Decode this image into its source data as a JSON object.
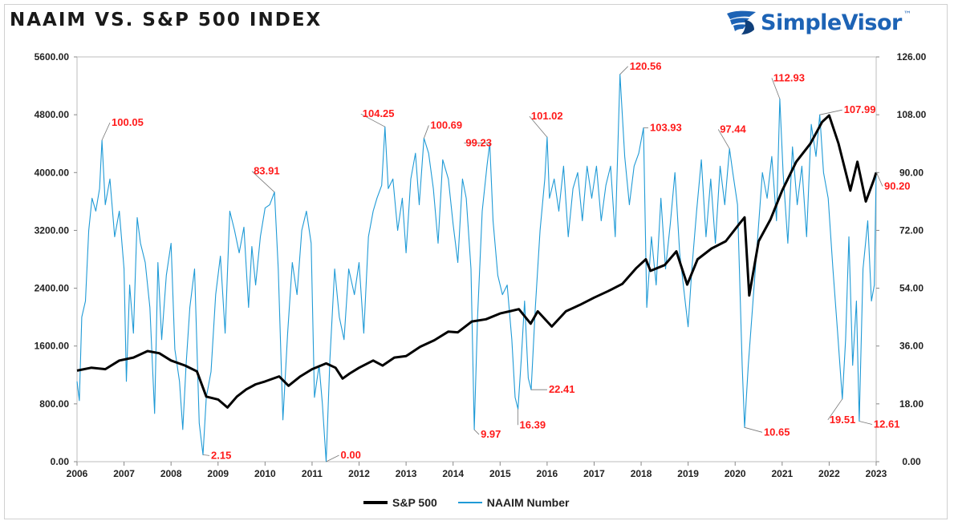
{
  "header": {
    "title": "NAAIM VS. S&P 500 INDEX",
    "brand_name": "SimpleVisor",
    "brand_tm": "™"
  },
  "colors": {
    "sp500": "#000000",
    "naaim": "#1f9ad6",
    "annotation": "#ff1a1a",
    "brand": "#1d63b5"
  },
  "legend": {
    "sp500_label": "S&P 500",
    "naaim_label": "NAAIM Number"
  },
  "chart_data": {
    "type": "line",
    "title": "NAAIM VS. S&P 500 INDEX",
    "xlabel": "",
    "ylabel": "",
    "grid": false,
    "legend_position": "bottom",
    "x_range": [
      2006.0,
      2023.0
    ],
    "x_ticks": [
      "2006",
      "2007",
      "2008",
      "2009",
      "2010",
      "2011",
      "2012",
      "2013",
      "2014",
      "2015",
      "2016",
      "2017",
      "2018",
      "2019",
      "2020",
      "2021",
      "2022",
      "2023"
    ],
    "y_left": {
      "series": "S&P 500",
      "range": [
        0,
        5600
      ],
      "ticks": [
        "0.00",
        "800.00",
        "1600.00",
        "2400.00",
        "3200.00",
        "4000.00",
        "4800.00",
        "5600.00"
      ]
    },
    "y_right": {
      "series": "NAAIM Number",
      "range": [
        0,
        126
      ],
      "ticks": [
        "0.00",
        "18.00",
        "36.00",
        "54.00",
        "72.00",
        "90.00",
        "108.00",
        "126.00"
      ]
    },
    "series": [
      {
        "name": "S&P 500",
        "axis": "left",
        "points": [
          [
            2006.0,
            1260
          ],
          [
            2006.3,
            1300
          ],
          [
            2006.6,
            1280
          ],
          [
            2006.9,
            1400
          ],
          [
            2007.2,
            1440
          ],
          [
            2007.5,
            1530
          ],
          [
            2007.75,
            1500
          ],
          [
            2008.0,
            1400
          ],
          [
            2008.3,
            1330
          ],
          [
            2008.55,
            1250
          ],
          [
            2008.75,
            900
          ],
          [
            2009.0,
            860
          ],
          [
            2009.2,
            750
          ],
          [
            2009.4,
            900
          ],
          [
            2009.6,
            1000
          ],
          [
            2009.8,
            1070
          ],
          [
            2010.0,
            1110
          ],
          [
            2010.3,
            1180
          ],
          [
            2010.5,
            1050
          ],
          [
            2010.75,
            1180
          ],
          [
            2011.0,
            1280
          ],
          [
            2011.3,
            1360
          ],
          [
            2011.5,
            1300
          ],
          [
            2011.65,
            1150
          ],
          [
            2011.8,
            1220
          ],
          [
            2012.0,
            1300
          ],
          [
            2012.3,
            1400
          ],
          [
            2012.5,
            1330
          ],
          [
            2012.75,
            1440
          ],
          [
            2013.0,
            1460
          ],
          [
            2013.3,
            1590
          ],
          [
            2013.6,
            1680
          ],
          [
            2013.9,
            1800
          ],
          [
            2014.1,
            1790
          ],
          [
            2014.4,
            1940
          ],
          [
            2014.7,
            1970
          ],
          [
            2015.0,
            2050
          ],
          [
            2015.4,
            2110
          ],
          [
            2015.65,
            1910
          ],
          [
            2015.8,
            2080
          ],
          [
            2016.1,
            1870
          ],
          [
            2016.4,
            2080
          ],
          [
            2016.7,
            2170
          ],
          [
            2017.0,
            2270
          ],
          [
            2017.3,
            2360
          ],
          [
            2017.6,
            2460
          ],
          [
            2017.9,
            2680
          ],
          [
            2018.1,
            2800
          ],
          [
            2018.2,
            2640
          ],
          [
            2018.5,
            2720
          ],
          [
            2018.75,
            2910
          ],
          [
            2018.98,
            2450
          ],
          [
            2019.2,
            2800
          ],
          [
            2019.5,
            2950
          ],
          [
            2019.8,
            3050
          ],
          [
            2020.1,
            3300
          ],
          [
            2020.2,
            3380
          ],
          [
            2020.3,
            2300
          ],
          [
            2020.5,
            3050
          ],
          [
            2020.75,
            3350
          ],
          [
            2021.0,
            3750
          ],
          [
            2021.3,
            4150
          ],
          [
            2021.6,
            4400
          ],
          [
            2021.85,
            4700
          ],
          [
            2022.0,
            4790
          ],
          [
            2022.2,
            4400
          ],
          [
            2022.45,
            3750
          ],
          [
            2022.6,
            4150
          ],
          [
            2022.78,
            3600
          ],
          [
            2022.95,
            3900
          ],
          [
            2023.0,
            4000
          ]
        ]
      },
      {
        "name": "NAAIM Number",
        "axis": "right",
        "points": [
          [
            2006.0,
            25
          ],
          [
            2006.05,
            19
          ],
          [
            2006.1,
            45
          ],
          [
            2006.18,
            50
          ],
          [
            2006.25,
            72
          ],
          [
            2006.32,
            82
          ],
          [
            2006.4,
            78
          ],
          [
            2006.48,
            85
          ],
          [
            2006.53,
            100.05
          ],
          [
            2006.6,
            80
          ],
          [
            2006.7,
            88
          ],
          [
            2006.8,
            70
          ],
          [
            2006.9,
            78
          ],
          [
            2007.0,
            60
          ],
          [
            2007.05,
            25
          ],
          [
            2007.12,
            55
          ],
          [
            2007.2,
            40
          ],
          [
            2007.28,
            76
          ],
          [
            2007.35,
            68
          ],
          [
            2007.45,
            62
          ],
          [
            2007.55,
            48
          ],
          [
            2007.65,
            15
          ],
          [
            2007.72,
            62
          ],
          [
            2007.8,
            38
          ],
          [
            2007.9,
            58
          ],
          [
            2008.0,
            68
          ],
          [
            2008.08,
            35
          ],
          [
            2008.18,
            25
          ],
          [
            2008.25,
            10
          ],
          [
            2008.32,
            30
          ],
          [
            2008.4,
            48
          ],
          [
            2008.5,
            60
          ],
          [
            2008.6,
            12
          ],
          [
            2008.68,
            2.15
          ],
          [
            2008.75,
            20
          ],
          [
            2008.85,
            28
          ],
          [
            2008.95,
            52
          ],
          [
            2009.05,
            64
          ],
          [
            2009.15,
            40
          ],
          [
            2009.25,
            78
          ],
          [
            2009.35,
            72
          ],
          [
            2009.45,
            65
          ],
          [
            2009.55,
            73
          ],
          [
            2009.65,
            48
          ],
          [
            2009.72,
            67
          ],
          [
            2009.8,
            55
          ],
          [
            2009.9,
            70
          ],
          [
            2010.0,
            79
          ],
          [
            2010.1,
            80
          ],
          [
            2010.2,
            83.91
          ],
          [
            2010.28,
            60
          ],
          [
            2010.38,
            13
          ],
          [
            2010.48,
            40
          ],
          [
            2010.58,
            62
          ],
          [
            2010.68,
            52
          ],
          [
            2010.78,
            72
          ],
          [
            2010.88,
            78
          ],
          [
            2010.98,
            68
          ],
          [
            2011.05,
            20
          ],
          [
            2011.15,
            30
          ],
          [
            2011.22,
            18
          ],
          [
            2011.3,
            0.0
          ],
          [
            2011.38,
            32
          ],
          [
            2011.48,
            60
          ],
          [
            2011.58,
            45
          ],
          [
            2011.68,
            38
          ],
          [
            2011.78,
            60
          ],
          [
            2011.9,
            52
          ],
          [
            2012.0,
            62
          ],
          [
            2012.1,
            40
          ],
          [
            2012.2,
            70
          ],
          [
            2012.3,
            78
          ],
          [
            2012.38,
            82
          ],
          [
            2012.48,
            86
          ],
          [
            2012.55,
            104.25
          ],
          [
            2012.62,
            85
          ],
          [
            2012.72,
            88
          ],
          [
            2012.82,
            72
          ],
          [
            2012.92,
            82
          ],
          [
            2013.0,
            65
          ],
          [
            2013.1,
            88
          ],
          [
            2013.2,
            96
          ],
          [
            2013.28,
            80
          ],
          [
            2013.38,
            100.69
          ],
          [
            2013.48,
            96
          ],
          [
            2013.58,
            85
          ],
          [
            2013.68,
            68
          ],
          [
            2013.78,
            94
          ],
          [
            2013.9,
            88
          ],
          [
            2014.0,
            74
          ],
          [
            2014.1,
            62
          ],
          [
            2014.2,
            88
          ],
          [
            2014.28,
            82
          ],
          [
            2014.38,
            60
          ],
          [
            2014.45,
            9.97
          ],
          [
            2014.52,
            45
          ],
          [
            2014.62,
            78
          ],
          [
            2014.72,
            92
          ],
          [
            2014.78,
            99.23
          ],
          [
            2014.85,
            75
          ],
          [
            2014.95,
            58
          ],
          [
            2015.05,
            52
          ],
          [
            2015.15,
            55
          ],
          [
            2015.25,
            38
          ],
          [
            2015.32,
            20
          ],
          [
            2015.38,
            16.39
          ],
          [
            2015.45,
            32
          ],
          [
            2015.52,
            50
          ],
          [
            2015.6,
            26
          ],
          [
            2015.66,
            22.41
          ],
          [
            2015.75,
            48
          ],
          [
            2015.85,
            72
          ],
          [
            2015.95,
            88
          ],
          [
            2016.0,
            101.02
          ],
          [
            2016.05,
            82
          ],
          [
            2016.15,
            88
          ],
          [
            2016.25,
            78
          ],
          [
            2016.35,
            92
          ],
          [
            2016.45,
            70
          ],
          [
            2016.55,
            85
          ],
          [
            2016.65,
            90
          ],
          [
            2016.75,
            75
          ],
          [
            2016.85,
            92
          ],
          [
            2016.95,
            82
          ],
          [
            2017.05,
            92
          ],
          [
            2017.15,
            75
          ],
          [
            2017.25,
            86
          ],
          [
            2017.35,
            92
          ],
          [
            2017.45,
            70
          ],
          [
            2017.55,
            120.56
          ],
          [
            2017.65,
            95
          ],
          [
            2017.75,
            80
          ],
          [
            2017.85,
            92
          ],
          [
            2017.95,
            96
          ],
          [
            2018.05,
            103.93
          ],
          [
            2018.12,
            48
          ],
          [
            2018.22,
            70
          ],
          [
            2018.32,
            55
          ],
          [
            2018.42,
            82
          ],
          [
            2018.52,
            60
          ],
          [
            2018.62,
            74
          ],
          [
            2018.72,
            90
          ],
          [
            2018.82,
            65
          ],
          [
            2018.92,
            52
          ],
          [
            2019.0,
            42
          ],
          [
            2019.08,
            60
          ],
          [
            2019.18,
            78
          ],
          [
            2019.28,
            94
          ],
          [
            2019.38,
            70
          ],
          [
            2019.48,
            88
          ],
          [
            2019.58,
            68
          ],
          [
            2019.68,
            92
          ],
          [
            2019.78,
            80
          ],
          [
            2019.88,
            97.44
          ],
          [
            2019.95,
            90
          ],
          [
            2020.05,
            80
          ],
          [
            2020.15,
            30
          ],
          [
            2020.2,
            10.65
          ],
          [
            2020.28,
            30
          ],
          [
            2020.38,
            50
          ],
          [
            2020.48,
            70
          ],
          [
            2020.58,
            90
          ],
          [
            2020.68,
            82
          ],
          [
            2020.78,
            95
          ],
          [
            2020.88,
            75
          ],
          [
            2020.95,
            112.93
          ],
          [
            2021.02,
            90
          ],
          [
            2021.12,
            68
          ],
          [
            2021.22,
            98
          ],
          [
            2021.32,
            80
          ],
          [
            2021.42,
            92
          ],
          [
            2021.52,
            70
          ],
          [
            2021.62,
            105
          ],
          [
            2021.72,
            95
          ],
          [
            2021.8,
            107.99
          ],
          [
            2021.88,
            90
          ],
          [
            2021.98,
            82
          ],
          [
            2022.08,
            60
          ],
          [
            2022.18,
            40
          ],
          [
            2022.28,
            19.51
          ],
          [
            2022.35,
            38
          ],
          [
            2022.42,
            70
          ],
          [
            2022.5,
            30
          ],
          [
            2022.58,
            50
          ],
          [
            2022.64,
            12.61
          ],
          [
            2022.72,
            60
          ],
          [
            2022.82,
            75
          ],
          [
            2022.9,
            50
          ],
          [
            2022.96,
            55
          ],
          [
            2023.0,
            90.2
          ]
        ]
      }
    ],
    "annotations": [
      {
        "label": "100.05",
        "x": 2006.53,
        "y": 100.05
      },
      {
        "label": "83.91",
        "x": 2010.2,
        "y": 83.91
      },
      {
        "label": "2.15",
        "x": 2008.68,
        "y": 2.15
      },
      {
        "label": "0.00",
        "x": 2011.3,
        "y": 0.0
      },
      {
        "label": "104.25",
        "x": 2012.55,
        "y": 104.25
      },
      {
        "label": "100.69",
        "x": 2013.38,
        "y": 100.69
      },
      {
        "label": "99.23",
        "x": 2014.78,
        "y": 99.23
      },
      {
        "label": "9.97",
        "x": 2014.45,
        "y": 9.97
      },
      {
        "label": "16.39",
        "x": 2015.38,
        "y": 16.39
      },
      {
        "label": "22.41",
        "x": 2015.66,
        "y": 22.41
      },
      {
        "label": "101.02",
        "x": 2016.0,
        "y": 101.02
      },
      {
        "label": "120.56",
        "x": 2017.55,
        "y": 120.56
      },
      {
        "label": "103.93",
        "x": 2018.05,
        "y": 103.93
      },
      {
        "label": "97.44",
        "x": 2019.88,
        "y": 97.44
      },
      {
        "label": "10.65",
        "x": 2020.2,
        "y": 10.65
      },
      {
        "label": "112.93",
        "x": 2020.95,
        "y": 112.93
      },
      {
        "label": "107.99",
        "x": 2021.8,
        "y": 107.99
      },
      {
        "label": "19.51",
        "x": 2022.28,
        "y": 19.51
      },
      {
        "label": "12.61",
        "x": 2022.64,
        "y": 12.61
      },
      {
        "label": "90.20",
        "x": 2023.0,
        "y": 90.2
      }
    ]
  }
}
